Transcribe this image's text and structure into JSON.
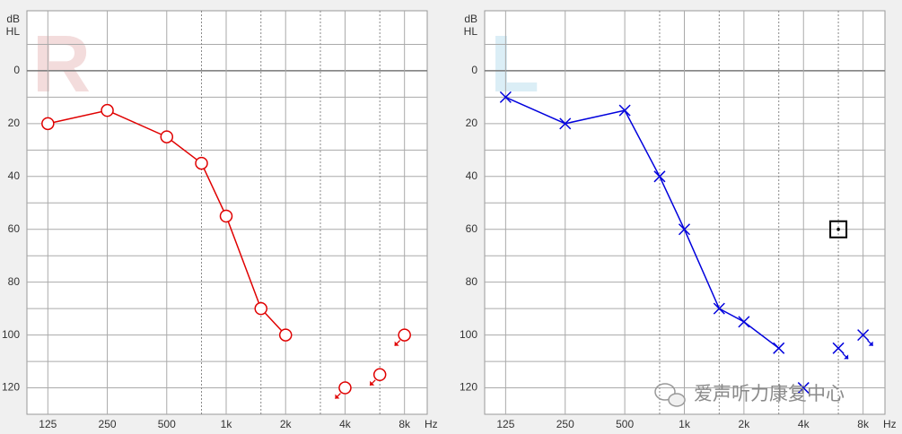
{
  "footer_text": "爱声听力康复中心",
  "chart_data": [
    {
      "type": "line",
      "watermark": "R",
      "ylabel": [
        "dB",
        "HL"
      ],
      "xlabel": "Hz",
      "log_x": true,
      "grid": true,
      "x": [
        125,
        250,
        500,
        750,
        1000,
        1500,
        2000,
        3000,
        4000,
        6000,
        8000
      ],
      "xlim": [
        100,
        10000
      ],
      "ylim": [
        -20,
        130
      ],
      "xticks": [
        125,
        250,
        500,
        {
          "value": 1000,
          "label": "1k"
        },
        {
          "value": 2000,
          "label": "2k"
        },
        {
          "value": 4000,
          "label": "4k"
        },
        {
          "value": 8000,
          "label": "8k"
        }
      ],
      "dotted_xgrid": [
        750,
        1500,
        3000,
        6000
      ],
      "yticks": [
        0,
        20,
        40,
        60,
        80,
        100,
        120
      ],
      "series": [
        {
          "color": "#e00000",
          "marker": "circle",
          "connect": true,
          "values": [
            20,
            15,
            25,
            35,
            55,
            90,
            100,
            null,
            null,
            null,
            null
          ]
        },
        {
          "color": "#e00000",
          "marker": "circle",
          "connect": false,
          "arrow": "down-left",
          "values": [
            null,
            null,
            null,
            null,
            null,
            null,
            null,
            null,
            120,
            115,
            100
          ]
        }
      ]
    },
    {
      "type": "line",
      "watermark": "L",
      "ylabel": [
        "dB",
        "HL"
      ],
      "xlabel": "Hz",
      "log_x": true,
      "grid": true,
      "x": [
        125,
        250,
        500,
        750,
        1000,
        1500,
        2000,
        3000,
        4000,
        6000,
        8000
      ],
      "xlim": [
        100,
        10000
      ],
      "ylim": [
        -20,
        130
      ],
      "xticks": [
        125,
        250,
        500,
        {
          "value": 1000,
          "label": "1k"
        },
        {
          "value": 2000,
          "label": "2k"
        },
        {
          "value": 4000,
          "label": "4k"
        },
        {
          "value": 8000,
          "label": "8k"
        }
      ],
      "dotted_xgrid": [
        750,
        1500,
        3000,
        6000
      ],
      "yticks": [
        0,
        20,
        40,
        60,
        80,
        100,
        120
      ],
      "series": [
        {
          "color": "#0000dd",
          "marker": "cross",
          "connect": true,
          "values": [
            10,
            20,
            15,
            40,
            60,
            90,
            95,
            105,
            null,
            null,
            null
          ]
        },
        {
          "color": "#0000dd",
          "marker": "cross",
          "connect": false,
          "values": [
            null,
            null,
            null,
            null,
            null,
            null,
            null,
            null,
            120,
            null,
            null
          ]
        },
        {
          "color": "#0000dd",
          "marker": "cross",
          "connect": false,
          "arrow": "down-right",
          "values": [
            null,
            null,
            null,
            null,
            null,
            null,
            null,
            null,
            null,
            105,
            100
          ]
        },
        {
          "color": "#000000",
          "marker": "square",
          "connect": false,
          "values": [
            null,
            null,
            null,
            null,
            null,
            null,
            null,
            null,
            null,
            60,
            null
          ]
        }
      ]
    }
  ]
}
